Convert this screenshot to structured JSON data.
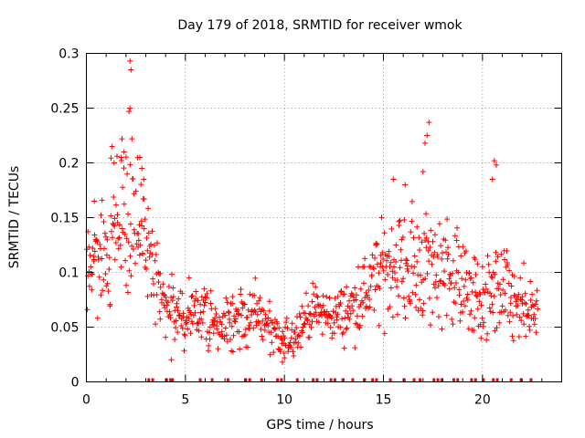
{
  "chart_data": {
    "type": "scatter",
    "title": "Day 179 of 2018, SRMTID for receiver wmok",
    "xlabel": "GPS time / hours",
    "ylabel": "SRMTID / TECUs",
    "xlim": [
      0,
      24
    ],
    "ylim": [
      0,
      0.3
    ],
    "xticks": [
      0,
      5,
      10,
      15,
      20
    ],
    "xtick_labels": [
      "0",
      "5",
      "10",
      "15",
      "20"
    ],
    "yticks": [
      0,
      0.05,
      0.1,
      0.15,
      0.2,
      0.25,
      0.3
    ],
    "ytick_labels": [
      "0",
      "0.05",
      "0.1",
      "0.15",
      "0.2",
      "0.25",
      "0.3"
    ],
    "grid": true,
    "marker": "+",
    "series_color": "#ff0000",
    "series": [
      {
        "name": "SRMTID",
        "profile": [
          [
            0.0,
            0.105
          ],
          [
            0.5,
            0.11
          ],
          [
            1.0,
            0.12
          ],
          [
            1.5,
            0.14
          ],
          [
            2.0,
            0.15
          ],
          [
            2.5,
            0.14
          ],
          [
            3.0,
            0.13
          ],
          [
            3.5,
            0.09
          ],
          [
            4.0,
            0.07
          ],
          [
            4.5,
            0.06
          ],
          [
            5.0,
            0.058
          ],
          [
            5.5,
            0.065
          ],
          [
            6.0,
            0.06
          ],
          [
            6.5,
            0.055
          ],
          [
            7.0,
            0.05
          ],
          [
            7.5,
            0.055
          ],
          [
            8.0,
            0.06
          ],
          [
            8.5,
            0.062
          ],
          [
            9.0,
            0.055
          ],
          [
            9.5,
            0.04
          ],
          [
            10.0,
            0.035
          ],
          [
            10.5,
            0.045
          ],
          [
            11.0,
            0.058
          ],
          [
            11.5,
            0.065
          ],
          [
            12.0,
            0.062
          ],
          [
            12.5,
            0.06
          ],
          [
            13.0,
            0.062
          ],
          [
            13.5,
            0.07
          ],
          [
            14.0,
            0.08
          ],
          [
            14.5,
            0.09
          ],
          [
            15.0,
            0.1
          ],
          [
            15.5,
            0.11
          ],
          [
            16.0,
            0.105
          ],
          [
            16.5,
            0.1
          ],
          [
            17.0,
            0.11
          ],
          [
            17.5,
            0.1
          ],
          [
            18.0,
            0.11
          ],
          [
            18.5,
            0.1
          ],
          [
            19.0,
            0.09
          ],
          [
            19.5,
            0.08
          ],
          [
            20.0,
            0.07
          ],
          [
            20.5,
            0.08
          ],
          [
            21.0,
            0.085
          ],
          [
            21.5,
            0.07
          ],
          [
            22.0,
            0.065
          ],
          [
            22.5,
            0.06
          ],
          [
            22.8,
            0.07
          ]
        ],
        "spread": [
          [
            0.0,
            0.035
          ],
          [
            2.0,
            0.06
          ],
          [
            3.5,
            0.035
          ],
          [
            4.5,
            0.025
          ],
          [
            9.0,
            0.02
          ],
          [
            10.0,
            0.015
          ],
          [
            13.0,
            0.02
          ],
          [
            15.5,
            0.04
          ],
          [
            17.5,
            0.045
          ],
          [
            19.0,
            0.035
          ],
          [
            21.0,
            0.035
          ],
          [
            22.8,
            0.025
          ]
        ],
        "outliers": [
          [
            2.2,
            0.293
          ],
          [
            2.25,
            0.285
          ],
          [
            2.2,
            0.25
          ],
          [
            2.15,
            0.247
          ],
          [
            1.8,
            0.222
          ],
          [
            2.3,
            0.222
          ],
          [
            1.3,
            0.215
          ],
          [
            1.9,
            0.21
          ],
          [
            2.7,
            0.205
          ],
          [
            2.8,
            0.195
          ],
          [
            2.9,
            0.185
          ],
          [
            1.4,
            0.2
          ],
          [
            17.3,
            0.237
          ],
          [
            17.2,
            0.225
          ],
          [
            17.1,
            0.218
          ],
          [
            17.0,
            0.192
          ],
          [
            20.6,
            0.202
          ],
          [
            20.7,
            0.198
          ],
          [
            20.5,
            0.185
          ],
          [
            16.1,
            0.18
          ],
          [
            15.5,
            0.185
          ],
          [
            0.4,
            0.165
          ],
          [
            9.9,
            0.018
          ],
          [
            10.0,
            0.022
          ]
        ]
      }
    ],
    "rug_marks_at_zero_hours": [
      3.15,
      3.35,
      4.05,
      4.25,
      4.35,
      5.75,
      6.35,
      7.15,
      8.05,
      8.25,
      8.85,
      9.65,
      9.85,
      10.65,
      11.45,
      11.65,
      12.35,
      12.55,
      12.95,
      13.45,
      14.05,
      14.45,
      14.65,
      15.35,
      16.05,
      16.55,
      16.85,
      17.55,
      17.75,
      17.95,
      18.55,
      18.75,
      19.45,
      19.65,
      20.05,
      20.55,
      20.75,
      21.45,
      21.95,
      22.45
    ]
  }
}
